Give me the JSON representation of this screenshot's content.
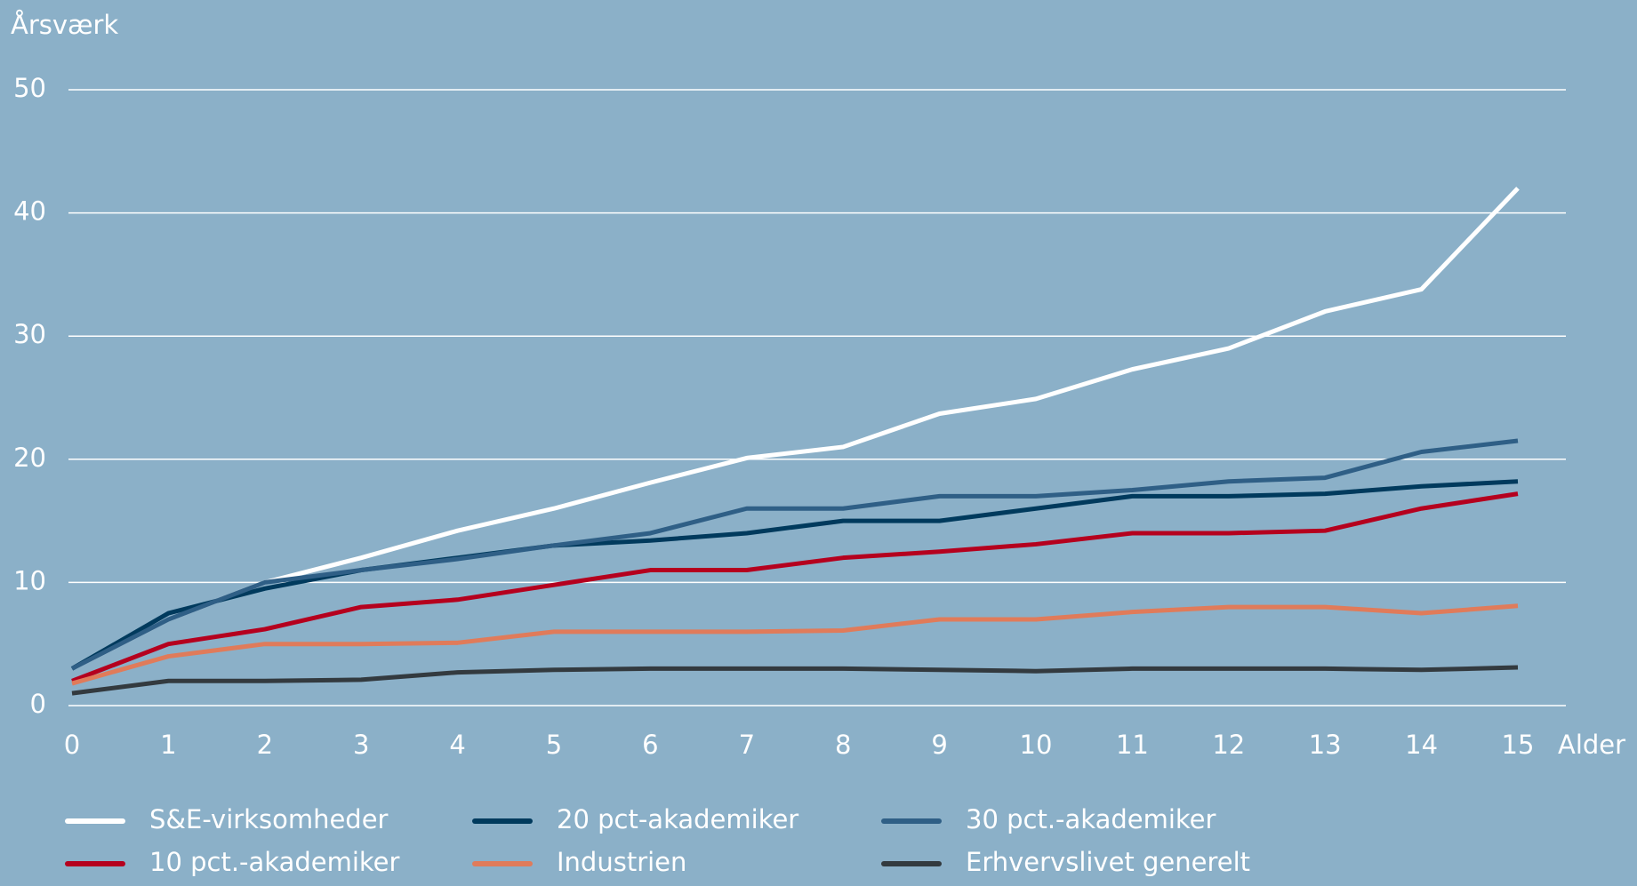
{
  "chart_data": {
    "type": "line",
    "y_label": "Årsværk",
    "x_label": "Alder",
    "x": [
      0,
      1,
      2,
      3,
      4,
      5,
      6,
      7,
      8,
      9,
      10,
      11,
      12,
      13,
      14,
      15
    ],
    "xlim": [
      0,
      15
    ],
    "xticks": [
      0,
      1,
      2,
      3,
      4,
      5,
      6,
      7,
      8,
      9,
      10,
      11,
      12,
      13,
      14,
      15
    ],
    "ylim": [
      0,
      50
    ],
    "yticks": [
      0,
      10,
      20,
      30,
      40,
      50
    ],
    "grid": true,
    "series": [
      {
        "name": "S&E-virksomheder",
        "color": "#ffffff",
        "values": [
          3,
          7,
          10,
          12,
          14.2,
          16,
          18.1,
          20.1,
          21,
          23.7,
          24.9,
          27.3,
          29,
          32,
          33.8,
          42
        ]
      },
      {
        "name": "20 pct-akademiker",
        "color": "#003a5d",
        "values": [
          3,
          7.5,
          9.5,
          11,
          12,
          13,
          13.4,
          14,
          15,
          15,
          16,
          17,
          17,
          17.2,
          17.8,
          18.2
        ]
      },
      {
        "name": "30 pct.-akademiker",
        "color": "#2f5f86",
        "values": [
          3,
          7,
          10,
          11,
          11.9,
          13,
          14,
          16,
          16,
          17,
          17,
          17.5,
          18.2,
          18.5,
          20.6,
          21.5
        ]
      },
      {
        "name": "10 pct.-akademiker",
        "color": "#b5001e",
        "values": [
          2,
          5,
          6.2,
          8,
          8.6,
          9.8,
          11,
          11,
          12,
          12.5,
          13.1,
          14,
          14,
          14.2,
          16,
          17.2
        ]
      },
      {
        "name": "Industrien",
        "color": "#e07b5a",
        "values": [
          1.8,
          4,
          5,
          5,
          5.1,
          6,
          6,
          6,
          6.1,
          7,
          7,
          7.6,
          8,
          8,
          7.5,
          8.1
        ]
      },
      {
        "name": "Erhvervslivet generelt",
        "color": "#333a3f",
        "values": [
          1,
          2,
          2,
          2.1,
          2.7,
          2.9,
          3,
          3,
          3,
          2.9,
          2.8,
          3,
          3,
          3,
          2.9,
          3.1
        ]
      }
    ]
  }
}
